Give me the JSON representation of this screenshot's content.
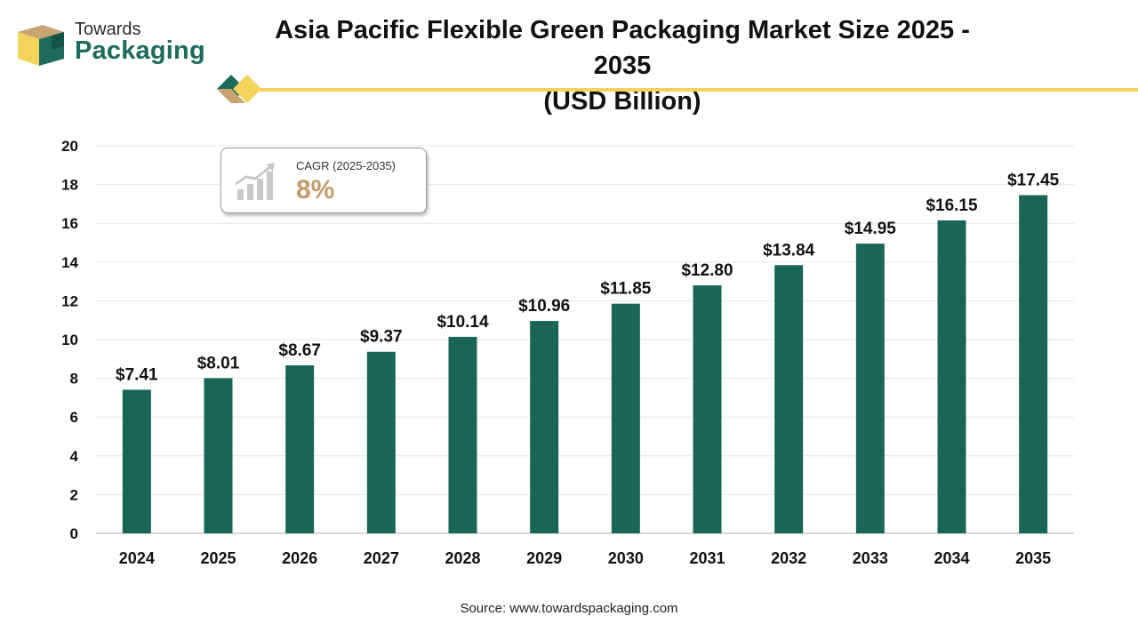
{
  "header": {
    "logo_line1": "Towards",
    "logo_line2": "Packaging",
    "title_line1": "Asia Pacific Flexible Green Packaging Market Size 2025 - 2035",
    "title_line2": "(USD Billion)"
  },
  "cagr": {
    "label": "CAGR (2025-2035)",
    "value": "8%",
    "icon": "growth-chart-icon"
  },
  "footer": {
    "source": "Source: www.towardspackaging.com"
  },
  "colors": {
    "bar": "#1a6656",
    "accent_yellow": "#f2d45c",
    "logo_green": "#1c6b5c",
    "logo_tan": "#c8a473",
    "cagr_value": "#c49a6c"
  },
  "chart_data": {
    "type": "bar",
    "categories": [
      "2024",
      "2025",
      "2026",
      "2027",
      "2028",
      "2029",
      "2030",
      "2031",
      "2032",
      "2033",
      "2034",
      "2035"
    ],
    "values": [
      7.41,
      8.01,
      8.67,
      9.37,
      10.14,
      10.96,
      11.85,
      12.8,
      13.84,
      14.95,
      16.15,
      17.45
    ],
    "data_labels": [
      "$7.41",
      "$8.01",
      "$8.67",
      "$9.37",
      "$10.14",
      "$10.96",
      "$11.85",
      "$12.80",
      "$13.84",
      "$14.95",
      "$16.15",
      "$17.45"
    ],
    "yticks": [
      "0",
      "2",
      "4",
      "6",
      "8",
      "10",
      "12",
      "14",
      "16",
      "18",
      "20"
    ],
    "ylim": [
      0,
      20
    ],
    "grid": true,
    "legend": "none"
  }
}
